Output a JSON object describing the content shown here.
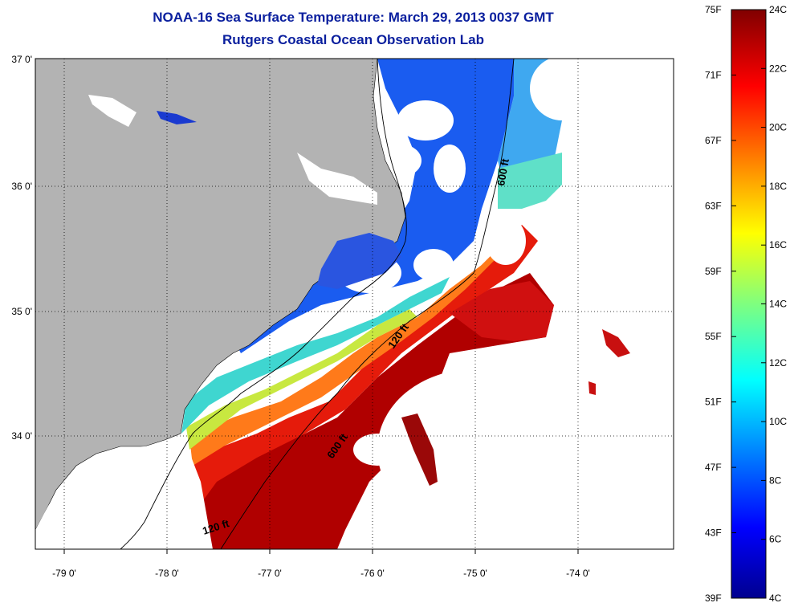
{
  "title": {
    "line1": "NOAA-16 Sea Surface Temperature:  March 29, 2013 0037 GMT",
    "line2": "Rutgers Coastal Ocean Observation Lab"
  },
  "map": {
    "lon_ticks": [
      "-79 0'",
      "-78 0'",
      "-77 0'",
      "-76 0'",
      "-75 0'",
      "-74 0'"
    ],
    "lat_ticks": [
      "37 0'",
      "36 0'",
      "35 0'",
      "34 0'"
    ],
    "contours": [
      "600 ft",
      "120 ft",
      "600 ft",
      "120 ft"
    ]
  },
  "colorbar": {
    "fahrenheit": [
      "75F",
      "71F",
      "67F",
      "63F",
      "59F",
      "55F",
      "51F",
      "47F",
      "43F",
      "39F"
    ],
    "celsius": [
      "24C",
      "22C",
      "20C",
      "18C",
      "16C",
      "14C",
      "12C",
      "10C",
      "8C",
      "6C",
      "4C"
    ]
  },
  "colors": {
    "title": "#0a1f9e",
    "land": "#b3b3b3",
    "no_data": "#ffffff"
  }
}
